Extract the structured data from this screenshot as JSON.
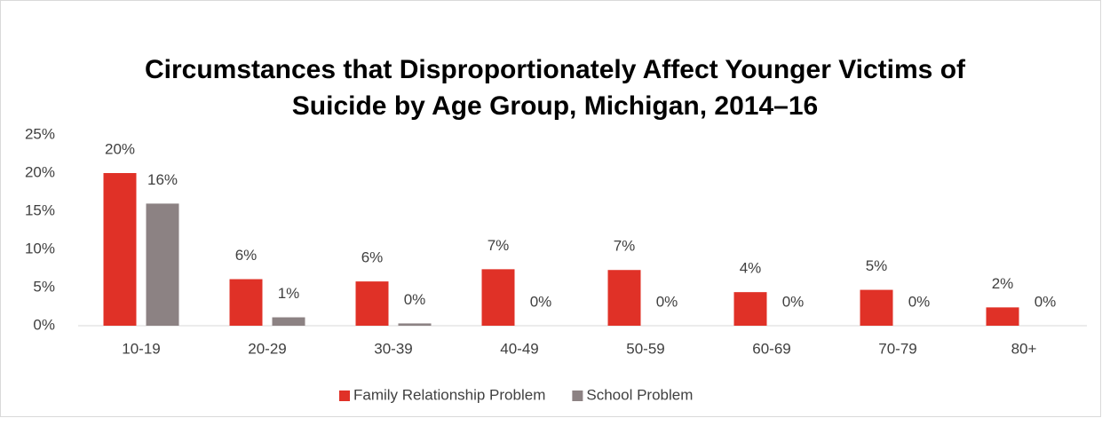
{
  "chart_data": {
    "type": "bar",
    "title": "Circumstances that Disproportionately Affect Younger Victims of Suicide by Age Group, Michigan, 2014–16",
    "categories": [
      "10-19",
      "20-29",
      "30-39",
      "40-49",
      "50-59",
      "60-69",
      "70-79",
      "80+"
    ],
    "series": [
      {
        "name": "Family Relationship Problem",
        "color": "#e03127",
        "values": [
          20,
          6.1,
          5.8,
          7.4,
          7.3,
          4.4,
          4.7,
          2.4
        ],
        "value_labels": [
          "20%",
          "6%",
          "6%",
          "7%",
          "7%",
          "4%",
          "5%",
          "2%"
        ]
      },
      {
        "name": "School Problem",
        "color": "#8c8283",
        "values": [
          16,
          1.1,
          0.3,
          0,
          0,
          0,
          0,
          0
        ],
        "value_labels": [
          "16%",
          "1%",
          "0%",
          "0%",
          "0%",
          "0%",
          "0%",
          "0%"
        ]
      }
    ],
    "ylim": [
      0,
      25
    ],
    "yticks": [
      {
        "value": 0,
        "label": "0%"
      },
      {
        "value": 5,
        "label": "5%"
      },
      {
        "value": 10,
        "label": "10%"
      },
      {
        "value": 15,
        "label": "15%"
      },
      {
        "value": 20,
        "label": "20%"
      },
      {
        "value": 25,
        "label": "25%"
      }
    ],
    "grid": false,
    "legend": "bottom"
  }
}
